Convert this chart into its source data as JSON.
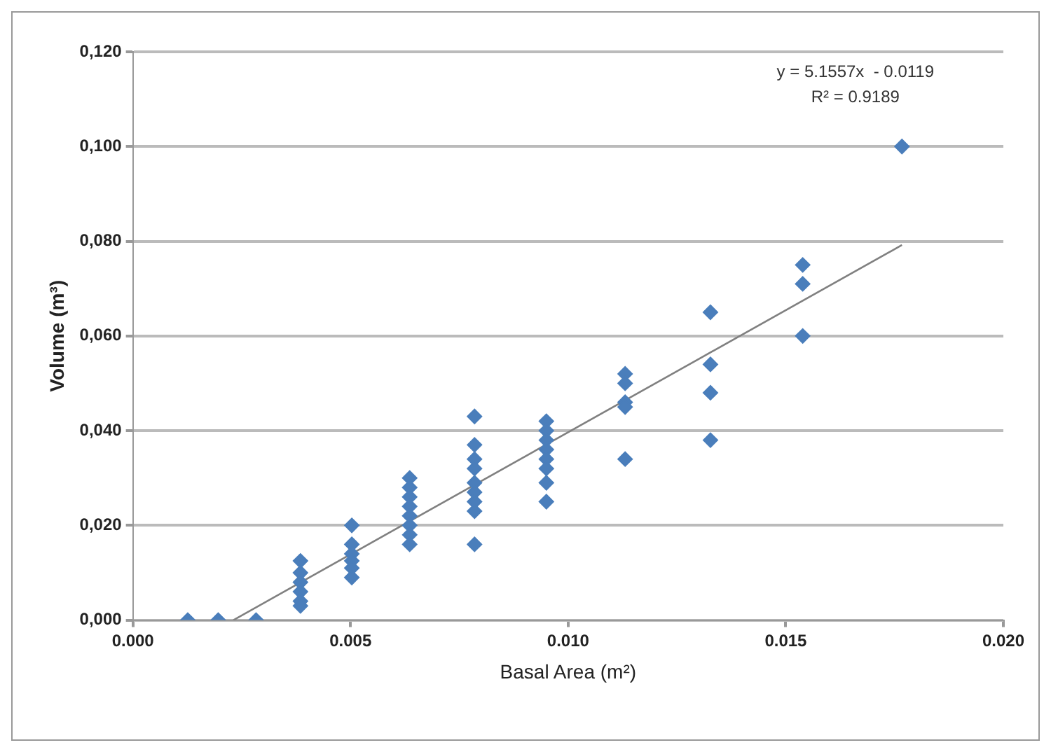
{
  "chart_data": {
    "type": "scatter",
    "xlabel": "Basal Area (m²)",
    "ylabel": "Volume (m³)",
    "annotations": [
      "y = 5.1557x  - 0.0119",
      "R² = 0.9189"
    ],
    "xlim": [
      0,
      0.02
    ],
    "xticks": [
      {
        "value": 0,
        "label": "0.000"
      },
      {
        "value": 0.005,
        "label": "0.005"
      },
      {
        "value": 0.01,
        "label": "0.010"
      },
      {
        "value": 0.015,
        "label": "0.015"
      },
      {
        "value": 0.02,
        "label": "0.020"
      }
    ],
    "ylim": [
      0,
      0.12
    ],
    "yticks": [
      {
        "value": 0,
        "label": "0,000"
      },
      {
        "value": 0.02,
        "label": "0,020"
      },
      {
        "value": 0.04,
        "label": "0,040"
      },
      {
        "value": 0.06,
        "label": "0,060"
      },
      {
        "value": 0.08,
        "label": "0,080"
      },
      {
        "value": 0.1,
        "label": "0,100"
      },
      {
        "value": 0.12,
        "label": "0,120"
      }
    ],
    "grid": "y",
    "legend": false,
    "marker": "diamond",
    "series": [
      {
        "color": "#4a7ebb",
        "x": [
          0.00126,
          0.00196,
          0.00283,
          0.00385,
          0.00385,
          0.00385,
          0.00385,
          0.00385,
          0.00385,
          0.00503,
          0.00503,
          0.00503,
          0.00503,
          0.00503,
          0.00503,
          0.00636,
          0.00636,
          0.00636,
          0.00636,
          0.00636,
          0.00636,
          0.00636,
          0.00636,
          0.00785,
          0.00785,
          0.00785,
          0.00785,
          0.00785,
          0.00785,
          0.00785,
          0.00785,
          0.00785,
          0.0095,
          0.0095,
          0.0095,
          0.0095,
          0.0095,
          0.0095,
          0.0095,
          0.0095,
          0.01131,
          0.01131,
          0.01131,
          0.01131,
          0.01131,
          0.01327,
          0.01327,
          0.01327,
          0.01327,
          0.01539,
          0.01539,
          0.01539,
          0.01767
        ],
        "values": [
          0,
          0,
          0,
          0.0125,
          0.01,
          0.008,
          0.006,
          0.004,
          0.003,
          0.02,
          0.016,
          0.014,
          0.0125,
          0.011,
          0.009,
          0.03,
          0.028,
          0.026,
          0.024,
          0.022,
          0.02,
          0.018,
          0.016,
          0.043,
          0.037,
          0.034,
          0.032,
          0.029,
          0.027,
          0.025,
          0.023,
          0.016,
          0.042,
          0.04,
          0.038,
          0.036,
          0.034,
          0.032,
          0.029,
          0.025,
          0.052,
          0.05,
          0.046,
          0.045,
          0.034,
          0.065,
          0.054,
          0.048,
          0.038,
          0.075,
          0.071,
          0.06,
          0.1
        ]
      },
      {
        "type": "line",
        "marker": "none",
        "color": "#808080",
        "x": [
          0.00231,
          0.01767
        ],
        "values": [
          0,
          0.0792
        ]
      }
    ]
  }
}
